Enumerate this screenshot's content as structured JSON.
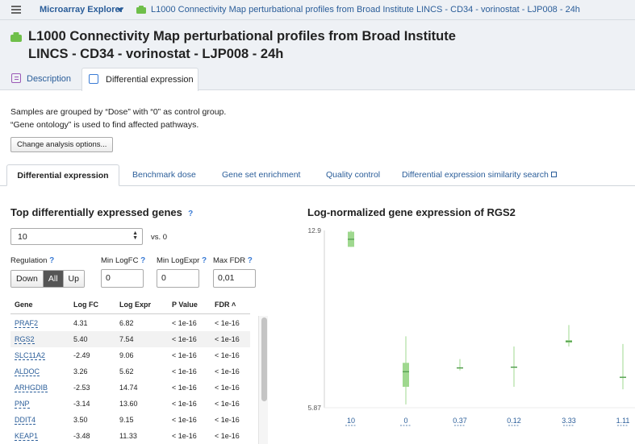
{
  "topbar": {
    "app_name": "Microarray Explorer",
    "breadcrumb": "L1000 Connectivity Map perturbational profiles from Broad Institute LINCS - CD34 - vorinostat - LJP008 - 24h"
  },
  "header": {
    "title": "L1000 Connectivity Map perturbational profiles from Broad Institute LINCS - CD34 - vorinostat - LJP008 - 24h",
    "tabs": [
      {
        "label": "Description"
      },
      {
        "label": "Differential expression"
      }
    ]
  },
  "info": {
    "line1": "Samples are grouped by “Dose” with “0” as control group.",
    "line2": "“Gene ontology” is used to find affected pathways.",
    "change_button": "Change analysis options..."
  },
  "subtabs": [
    "Differential expression",
    "Benchmark dose",
    "Gene set enrichment",
    "Quality control",
    "Differential expression similarity search"
  ],
  "left": {
    "title": "Top differentially expressed genes",
    "help": "?",
    "top_select": "10",
    "vs_label": "vs. 0",
    "regulation_label": "Regulation",
    "regulation_options": [
      "Down",
      "All",
      "Up"
    ],
    "regulation_selected": "All",
    "min_logfc_label": "Min LogFC",
    "min_logfc_value": "0",
    "min_logexpr_label": "Min LogExpr",
    "min_logexpr_value": "0",
    "max_fdr_label": "Max FDR",
    "max_fdr_value": "0,01"
  },
  "table": {
    "headers": [
      "Gene",
      "Log FC",
      "Log Expr",
      "P Value",
      "FDR ˄"
    ],
    "rows": [
      [
        "PRAF2",
        "4.31",
        "6.82",
        "< 1e-16",
        "< 1e-16"
      ],
      [
        "RGS2",
        "5.40",
        "7.54",
        "< 1e-16",
        "< 1e-16"
      ],
      [
        "SLC11A2",
        "-2.49",
        "9.06",
        "< 1e-16",
        "< 1e-16"
      ],
      [
        "ALDOC",
        "3.26",
        "5.62",
        "< 1e-16",
        "< 1e-16"
      ],
      [
        "ARHGDIB",
        "-2.53",
        "14.74",
        "< 1e-16",
        "< 1e-16"
      ],
      [
        "PNP",
        "-3.14",
        "13.60",
        "< 1e-16",
        "< 1e-16"
      ],
      [
        "DDIT4",
        "3.50",
        "9.15",
        "< 1e-16",
        "< 1e-16"
      ],
      [
        "KEAP1",
        "-3.48",
        "11.33",
        "< 1e-16",
        "< 1e-16"
      ]
    ],
    "selected_row": 1
  },
  "chart_data": {
    "type": "box",
    "title": "Log-normalized gene expression of RGS2",
    "ylim": [
      5.87,
      12.9
    ],
    "y_ticks": [
      "12.9",
      "5.87"
    ],
    "categories": [
      "10",
      "0",
      "0.37",
      "0.12",
      "3.33",
      "1.11"
    ],
    "boxes": [
      {
        "category": "10",
        "min": 12.25,
        "q1": 12.25,
        "median": 12.55,
        "q3": 12.85,
        "max": 12.9
      },
      {
        "category": "0",
        "min": 6.0,
        "q1": 6.7,
        "median": 7.3,
        "q3": 7.65,
        "max": 8.7
      },
      {
        "category": "0.37",
        "min": 7.35,
        "q1": 7.42,
        "median": 7.45,
        "q3": 7.47,
        "max": 7.8
      },
      {
        "category": "0.12",
        "min": 6.7,
        "q1": 7.45,
        "median": 7.48,
        "q3": 7.5,
        "max": 8.3
      },
      {
        "category": "3.33",
        "min": 8.3,
        "q1": 8.45,
        "median": 8.5,
        "q3": 8.55,
        "max": 9.15
      },
      {
        "category": "1.11",
        "min": 6.6,
        "q1": 7.05,
        "median": 7.08,
        "q3": 7.1,
        "max": 8.4
      }
    ],
    "color": "#9fd88f",
    "median_color": "#3c8c3c"
  }
}
